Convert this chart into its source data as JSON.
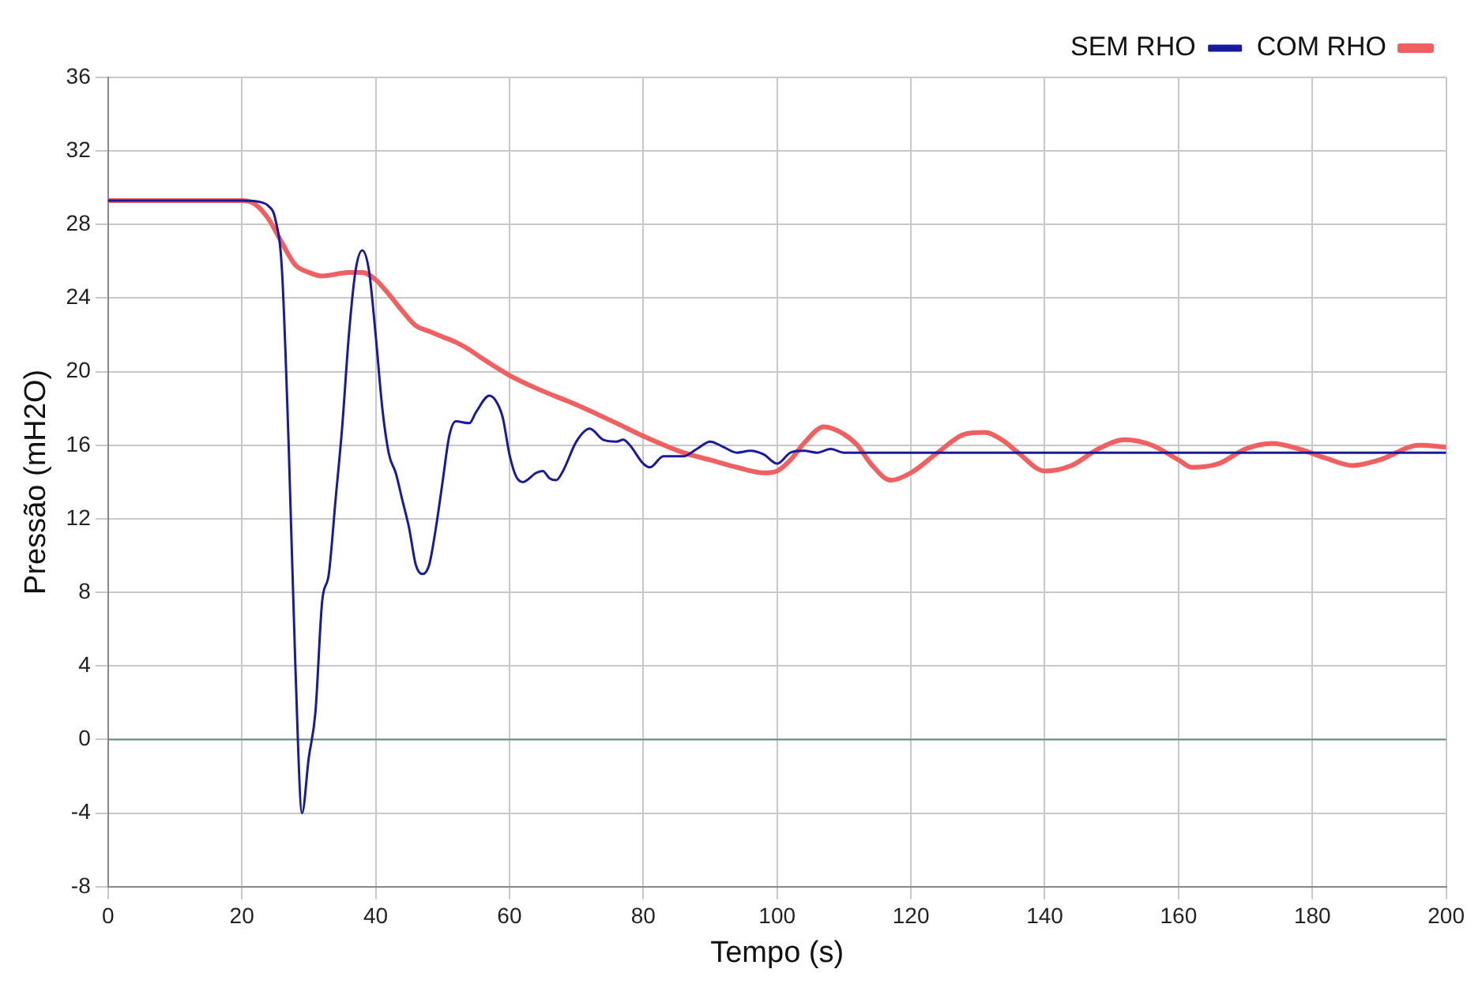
{
  "chart_data": {
    "type": "line",
    "xlabel": "Tempo (s)",
    "ylabel": "Pressão (mH2O)",
    "xlim": [
      0,
      200
    ],
    "xticks": [
      0,
      20,
      40,
      60,
      80,
      100,
      120,
      140,
      160,
      180,
      200
    ],
    "ylim": [
      -8,
      36
    ],
    "yticks": [
      -8,
      -4,
      0,
      4,
      8,
      12,
      16,
      20,
      24,
      28,
      32,
      36
    ],
    "grid": true,
    "legend": "top right",
    "marker": "none",
    "line_style": "solid",
    "ref_lines": [
      {
        "axis": "y",
        "value": 0,
        "color": "#5f8f80"
      }
    ],
    "series": [
      {
        "name": "SEM RHO",
        "color": "#1a1a9c",
        "x": [
          0,
          20,
          23,
          24,
          25,
          26,
          27,
          28,
          29,
          30,
          31,
          32,
          33,
          34,
          35,
          36,
          37,
          38,
          39,
          40,
          41,
          42,
          43,
          44,
          45,
          46,
          47,
          48,
          49,
          50,
          51,
          52,
          54,
          55,
          57,
          58,
          59,
          60,
          61,
          62,
          64,
          65,
          66,
          67,
          68,
          70,
          72,
          74,
          76,
          77,
          78,
          80,
          81,
          83,
          86,
          88,
          90,
          92,
          94,
          96,
          98,
          100,
          102,
          104,
          106,
          108,
          110,
          115,
          130,
          150,
          170,
          200
        ],
        "values": [
          29.3,
          29.3,
          29.2,
          29.0,
          28.3,
          25.5,
          16,
          4,
          -4,
          -1,
          1.5,
          7.5,
          9,
          13,
          17,
          22,
          25.5,
          26.6,
          25.5,
          22,
          18,
          15.5,
          14.5,
          13,
          11.5,
          9.5,
          9,
          9.5,
          11.5,
          14,
          16.5,
          17.3,
          17.2,
          17.8,
          18.7,
          18.4,
          17.5,
          15.5,
          14.3,
          14,
          14.5,
          14.6,
          14.2,
          14.1,
          14.6,
          16.2,
          16.9,
          16.3,
          16.2,
          16.3,
          16.0,
          15.0,
          14.8,
          15.4,
          15.4,
          15.8,
          16.2,
          15.9,
          15.6,
          15.7,
          15.5,
          15.0,
          15.6,
          15.7,
          15.6,
          15.8,
          15.6,
          15.6,
          15.6,
          15.6,
          15.6,
          15.6
        ]
      },
      {
        "name": "COM RHO",
        "color": "#f06060",
        "x": [
          0,
          20,
          22,
          24,
          26,
          28,
          30,
          32,
          34,
          36,
          38,
          40,
          42,
          44,
          46,
          48,
          50,
          52,
          54,
          56,
          60,
          64,
          70,
          76,
          80,
          86,
          90,
          94,
          98,
          100,
          102,
          104,
          107,
          110,
          112,
          114,
          117,
          120,
          124,
          128,
          131,
          134,
          136,
          140,
          144,
          148,
          152,
          156,
          160,
          162,
          166,
          170,
          174,
          178,
          182,
          186,
          190,
          196,
          200
        ],
        "values": [
          29.3,
          29.3,
          29.1,
          28.3,
          27,
          25.8,
          25.4,
          25.2,
          25.3,
          25.4,
          25.4,
          25,
          24.2,
          23.3,
          22.5,
          22.2,
          21.9,
          21.6,
          21.2,
          20.7,
          19.8,
          19.1,
          18.2,
          17.2,
          16.5,
          15.6,
          15.2,
          14.8,
          14.5,
          14.6,
          15.2,
          16.1,
          17.0,
          16.6,
          16.0,
          15.0,
          14.1,
          14.5,
          15.6,
          16.6,
          16.7,
          16.2,
          15.6,
          14.6,
          14.9,
          15.8,
          16.3,
          16.0,
          15.2,
          14.8,
          15.0,
          15.8,
          16.1,
          15.8,
          15.3,
          14.9,
          15.2,
          16.0,
          15.9
        ]
      }
    ]
  }
}
